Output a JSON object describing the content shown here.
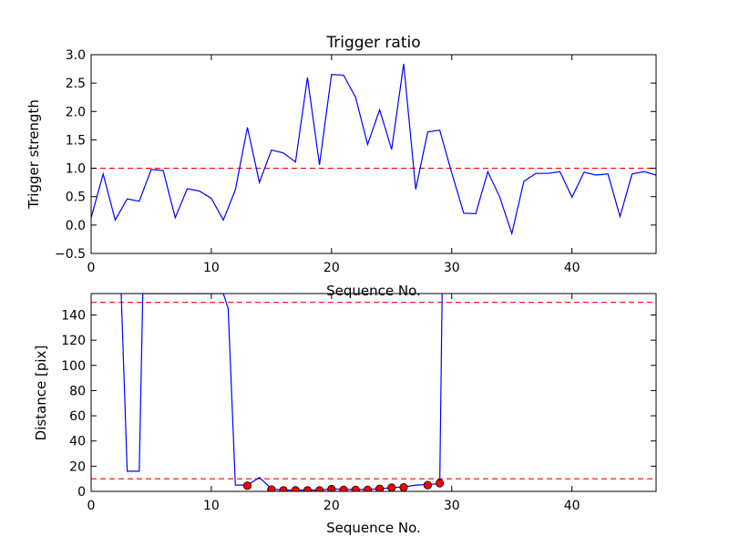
{
  "chart_data": [
    {
      "type": "line",
      "title": "Trigger ratio",
      "xlabel": "Sequence No.",
      "ylabel": "Trigger strength",
      "xlim": [
        0,
        47
      ],
      "ylim": [
        -0.5,
        3.0
      ],
      "xticks": [
        0,
        10,
        20,
        30,
        40
      ],
      "yticks": [
        -0.5,
        0.0,
        0.5,
        1.0,
        1.5,
        2.0,
        2.5,
        3.0
      ],
      "xtick_labels": [
        "0",
        "10",
        "20",
        "30",
        "40"
      ],
      "ytick_labels": [
        "−0.5",
        "0.0",
        "0.5",
        "1.0",
        "1.5",
        "2.0",
        "2.5",
        "3.0"
      ],
      "grid": false,
      "series": [
        {
          "color": "#0000ff",
          "x": [
            0,
            1,
            2,
            3,
            4,
            5,
            6,
            7,
            8,
            9,
            10,
            11,
            12,
            13,
            14,
            15,
            16,
            17,
            18,
            19,
            20,
            21,
            22,
            23,
            24,
            25,
            26,
            27,
            28,
            29,
            30,
            31,
            32,
            33,
            34,
            35,
            36,
            37,
            38,
            39,
            40,
            41,
            42,
            43,
            44,
            45,
            46,
            47
          ],
          "y": [
            0.13,
            0.9,
            0.09,
            0.46,
            0.42,
            0.98,
            0.96,
            0.13,
            0.64,
            0.6,
            0.47,
            0.09,
            0.62,
            1.72,
            0.75,
            1.32,
            1.27,
            1.11,
            2.6,
            1.06,
            2.65,
            2.64,
            2.25,
            1.42,
            2.03,
            1.33,
            2.84,
            0.63,
            1.64,
            1.67,
            0.92,
            0.21,
            0.2,
            0.94,
            0.49,
            -0.15,
            0.77,
            0.91,
            0.91,
            0.94,
            0.49,
            0.93,
            0.88,
            0.9,
            0.15,
            0.9,
            0.94,
            0.88
          ]
        }
      ],
      "reference_lines": [
        {
          "y": 1.0,
          "color": "#ff0000",
          "style": "dashed"
        }
      ]
    },
    {
      "type": "line",
      "title": "",
      "xlabel": "Sequence No.",
      "ylabel": "Distance [pix]",
      "xlim": [
        0,
        47
      ],
      "ylim": [
        0,
        157
      ],
      "xticks": [
        0,
        10,
        20,
        30,
        40
      ],
      "yticks": [
        0,
        20,
        40,
        60,
        80,
        100,
        120,
        140
      ],
      "xtick_labels": [
        "0",
        "10",
        "20",
        "30",
        "40"
      ],
      "ytick_labels": [
        "0",
        "20",
        "40",
        "60",
        "80",
        "100",
        "120",
        "140"
      ],
      "grid": false,
      "series": [
        {
          "color": "#0000ff",
          "x": [
            2.5,
            3,
            4,
            4.3,
            11,
            11.4,
            12,
            13,
            14,
            15,
            16,
            17,
            18,
            19,
            20,
            21,
            22,
            23,
            24,
            25,
            26,
            27,
            28,
            29,
            29.2
          ],
          "y": [
            157,
            16,
            16,
            157,
            157,
            145,
            5,
            5,
            11,
            2,
            1,
            1,
            1,
            1,
            2,
            1.5,
            1.5,
            1.5,
            2,
            3,
            3.5,
            5,
            5.5,
            6,
            157
          ]
        },
        {
          "kind": "markers",
          "color": "#ff0000",
          "x": [
            13,
            15,
            16,
            17,
            18,
            19,
            20,
            21,
            22,
            23,
            24,
            25,
            26,
            28,
            29
          ],
          "y": [
            4.5,
            1.5,
            0.8,
            0.8,
            0.8,
            0.8,
            1.8,
            1.2,
            1.2,
            1.2,
            2,
            3,
            3.2,
            5,
            6.5
          ]
        }
      ],
      "reference_lines": [
        {
          "y": 10,
          "color": "#ff0000",
          "style": "dashed"
        },
        {
          "y": 150,
          "color": "#ff0000",
          "style": "dashed"
        }
      ]
    }
  ]
}
